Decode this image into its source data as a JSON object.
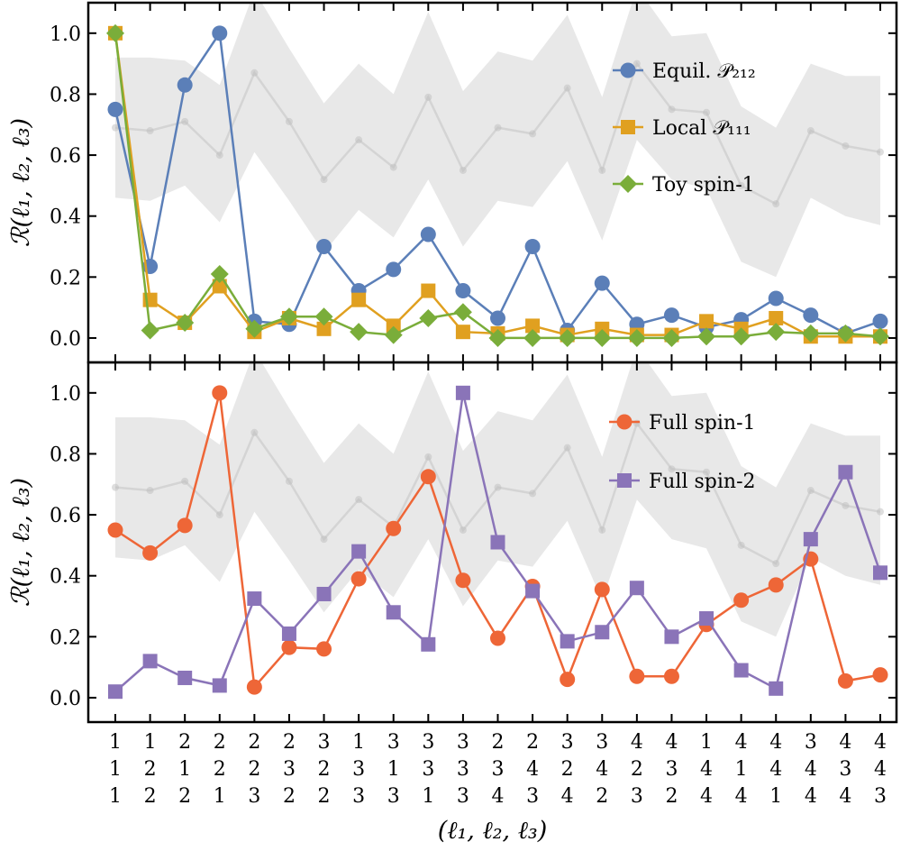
{
  "chart_data": [
    {
      "type": "line",
      "panel": "top",
      "ylabel": "ℛ(ℓ₁, ℓ₂, ℓ₃)",
      "ylim": [
        -0.08,
        1.1
      ],
      "yticks": [
        0.0,
        0.2,
        0.4,
        0.6,
        0.8,
        1.0
      ],
      "ytick_labels": [
        "0.0",
        "0.2",
        "0.4",
        "0.6",
        "0.8",
        "1.0"
      ],
      "legend_position": "top-right",
      "series": [
        {
          "name": "Equil. 𝒫₂₁₂",
          "color": "#5b7fb8",
          "marker": "circle",
          "values": [
            0.75,
            0.235,
            0.83,
            1.0,
            0.055,
            0.045,
            0.3,
            0.155,
            0.225,
            0.34,
            0.155,
            0.065,
            0.3,
            0.025,
            0.18,
            0.045,
            0.075,
            0.035,
            0.06,
            0.13,
            0.075,
            0.015,
            0.055
          ]
        },
        {
          "name": "Local 𝒫₁₁₁",
          "color": "#e0a020",
          "marker": "square",
          "values": [
            1.0,
            0.125,
            0.05,
            0.17,
            0.02,
            0.065,
            0.03,
            0.125,
            0.04,
            0.155,
            0.02,
            0.015,
            0.04,
            0.01,
            0.03,
            0.01,
            0.01,
            0.055,
            0.03,
            0.065,
            0.005,
            0.005,
            0.005
          ]
        },
        {
          "name": "Toy spin-1",
          "color": "#7aad3a",
          "marker": "diamond",
          "values": [
            1.0,
            0.025,
            0.05,
            0.21,
            0.03,
            0.07,
            0.07,
            0.02,
            0.01,
            0.065,
            0.085,
            0.0,
            0.0,
            0.0,
            0.0,
            0.0,
            0.0,
            0.005,
            0.005,
            0.02,
            0.015,
            0.015,
            0.005
          ]
        }
      ]
    },
    {
      "type": "line",
      "panel": "bottom",
      "ylabel": "ℛ(ℓ₁, ℓ₂, ℓ₃)",
      "ylim": [
        -0.08,
        1.1
      ],
      "yticks": [
        0.0,
        0.2,
        0.4,
        0.6,
        0.8,
        1.0
      ],
      "ytick_labels": [
        "0.0",
        "0.2",
        "0.4",
        "0.6",
        "0.8",
        "1.0"
      ],
      "legend_position": "top-right",
      "series": [
        {
          "name": "Full spin-1",
          "color": "#ee6637",
          "marker": "circle",
          "values": [
            0.55,
            0.475,
            0.565,
            1.0,
            0.035,
            0.165,
            0.16,
            0.39,
            0.555,
            0.725,
            0.385,
            0.195,
            0.365,
            0.06,
            0.355,
            0.07,
            0.07,
            0.24,
            0.32,
            0.37,
            0.455,
            0.055,
            0.075
          ]
        },
        {
          "name": "Full spin-2",
          "color": "#8a74b8",
          "marker": "square",
          "values": [
            0.02,
            0.12,
            0.065,
            0.04,
            0.325,
            0.21,
            0.34,
            0.48,
            0.28,
            0.175,
            1.0,
            0.51,
            0.35,
            0.185,
            0.215,
            0.36,
            0.2,
            0.26,
            0.09,
            0.03,
            0.52,
            0.74,
            0.41
          ]
        }
      ]
    }
  ],
  "shared": {
    "xlabel": "(ℓ₁, ℓ₂, ℓ₃)",
    "categories": [
      [
        "1",
        "1",
        "1"
      ],
      [
        "1",
        "2",
        "2"
      ],
      [
        "2",
        "1",
        "2"
      ],
      [
        "2",
        "2",
        "1"
      ],
      [
        "2",
        "2",
        "3"
      ],
      [
        "2",
        "3",
        "2"
      ],
      [
        "3",
        "2",
        "2"
      ],
      [
        "1",
        "3",
        "3"
      ],
      [
        "3",
        "1",
        "3"
      ],
      [
        "3",
        "3",
        "1"
      ],
      [
        "3",
        "3",
        "3"
      ],
      [
        "2",
        "3",
        "4"
      ],
      [
        "2",
        "4",
        "3"
      ],
      [
        "3",
        "2",
        "4"
      ],
      [
        "3",
        "4",
        "2"
      ],
      [
        "4",
        "2",
        "3"
      ],
      [
        "4",
        "3",
        "2"
      ],
      [
        "1",
        "4",
        "4"
      ],
      [
        "4",
        "1",
        "4"
      ],
      [
        "4",
        "4",
        "1"
      ],
      [
        "3",
        "4",
        "4"
      ],
      [
        "4",
        "3",
        "4"
      ],
      [
        "4",
        "4",
        "3"
      ]
    ],
    "reference_band": {
      "color": "#bdbdbd",
      "center": [
        0.69,
        0.68,
        0.71,
        0.6,
        0.87,
        0.71,
        0.52,
        0.65,
        0.56,
        0.79,
        0.55,
        0.69,
        0.67,
        0.82,
        0.55,
        0.9,
        0.75,
        0.74,
        0.5,
        0.44,
        0.68,
        0.63,
        0.61
      ],
      "upper": [
        0.92,
        0.92,
        0.91,
        0.83,
        1.14,
        0.95,
        0.77,
        0.9,
        0.8,
        1.07,
        0.81,
        0.94,
        0.91,
        1.06,
        0.79,
        1.15,
        0.99,
        1.0,
        0.76,
        0.69,
        0.9,
        0.86,
        0.86
      ],
      "lower": [
        0.46,
        0.45,
        0.5,
        0.38,
        0.61,
        0.45,
        0.28,
        0.42,
        0.33,
        0.52,
        0.3,
        0.45,
        0.43,
        0.58,
        0.32,
        0.65,
        0.52,
        0.49,
        0.25,
        0.2,
        0.46,
        0.4,
        0.37
      ]
    }
  }
}
